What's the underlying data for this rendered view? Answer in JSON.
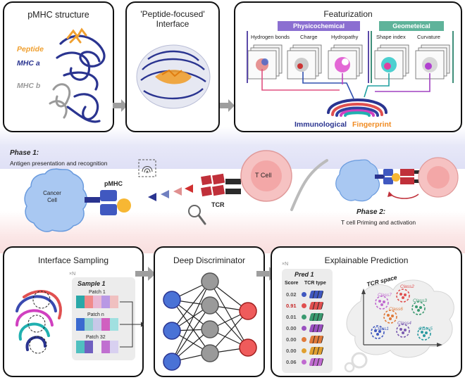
{
  "panels": {
    "pmhc": {
      "title": "pMHC structure",
      "peptide": "Peptide",
      "mhc_a": "MHC a",
      "mhc_b": "MHC b"
    },
    "interface": {
      "title_line1": "'Peptide-focused'",
      "title_line2": "Interface"
    },
    "featurization": {
      "title": "Featurization",
      "group1": "Physicochemical",
      "group2": "Geometeical",
      "features": [
        "Hydrogen bonds",
        "Charge",
        "Hydropathy",
        "Shape index",
        "Curvature"
      ],
      "fingerprint_a": "Immunological",
      "fingerprint_b": "Fingerprint"
    },
    "sampling": {
      "title": "Interface Sampling",
      "multiplier": "×N",
      "sample": "Sample 1",
      "patches": [
        "Patch 1",
        "Patch n",
        "Patch 32"
      ]
    },
    "discriminator": {
      "title": "Deep Discriminator"
    },
    "prediction": {
      "title": "Explainable Prediction",
      "multiplier": "×N",
      "pred": "Pred 1",
      "col_score": "Score",
      "col_tcr": "TCR type",
      "scores": [
        "0.02",
        "0.91",
        "0.01",
        "0.00",
        "0.00",
        "0.00",
        "0.06"
      ],
      "space_label": "TCR space",
      "classes": [
        "Class7",
        "Class2",
        "Class6",
        "Class3",
        "Class1",
        "Class4",
        "Class5"
      ]
    }
  },
  "middle": {
    "phase1_title": "Phase 1:",
    "phase1_desc": "Antigen presentation and recognition",
    "cancer_cell": "Cancer Cell",
    "pmhc": "pMHC",
    "tcr": "TCR",
    "tcell": "T Cell",
    "phase2_title": "Phase 2:",
    "phase2_desc": "T cell Priming and activation"
  },
  "colors": {
    "physicochemical": "#8b6fd1",
    "geometrical": "#5fb39a",
    "peptide": "#f0a030",
    "mhc_a": "#2a3490",
    "mhc_b": "#9a9a9a",
    "score_highlight": "#c62828"
  }
}
